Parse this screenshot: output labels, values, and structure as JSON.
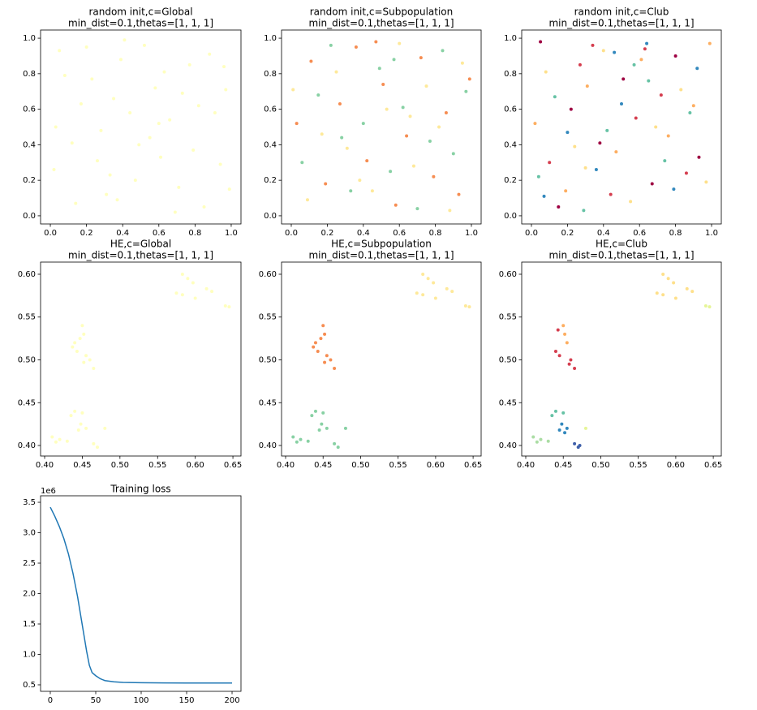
{
  "chart_data": [
    {
      "type": "scatter",
      "title": [
        "random init,c=Global",
        "min_dist=0.1,thetas=[1, 1, 1]"
      ],
      "xlim": [
        -0.054,
        1.054
      ],
      "ylim": [
        -0.046,
        1.046
      ],
      "xticks": [
        {
          "value": 0,
          "label": "0.0"
        },
        0.2,
        0.4,
        0.6,
        0.8,
        {
          "value": 1,
          "label": "1.0"
        }
      ],
      "yticks": [
        {
          "value": 0,
          "label": "0.0"
        },
        0.2,
        0.4,
        0.6,
        0.8,
        {
          "value": 1,
          "label": "1.0"
        }
      ],
      "series": [
        {
          "color": "#ffffbf",
          "x": [
            0.05,
            0.12,
            0.23,
            0.31,
            0.44,
            0.52,
            0.61,
            0.73,
            0.85,
            0.96,
            0.02,
            0.17,
            0.28,
            0.39,
            0.47,
            0.58,
            0.66,
            0.79,
            0.88,
            0.99,
            0.08,
            0.14,
            0.26,
            0.35,
            0.41,
            0.55,
            0.69,
            0.77,
            0.91,
            0.94,
            0.03,
            0.2,
            0.33,
            0.49,
            0.63,
            0.71,
            0.82,
            0.97,
            0.37,
            0.6
          ],
          "y": [
            0.93,
            0.41,
            0.77,
            0.12,
            0.58,
            0.96,
            0.33,
            0.69,
            0.05,
            0.84,
            0.26,
            0.63,
            0.48,
            0.88,
            0.2,
            0.72,
            0.54,
            0.37,
            0.91,
            0.15,
            0.79,
            0.07,
            0.31,
            0.66,
            0.99,
            0.44,
            0.02,
            0.85,
            0.58,
            0.29,
            0.5,
            0.95,
            0.23,
            0.4,
            0.81,
            0.16,
            0.62,
            0.71,
            0.09,
            0.52
          ]
        }
      ]
    },
    {
      "type": "scatter",
      "title": [
        "random init,c=Subpopulation",
        "min_dist=0.1,thetas=[1, 1, 1]"
      ],
      "xlim": [
        -0.054,
        1.054
      ],
      "ylim": [
        -0.046,
        1.046
      ],
      "xticks": [
        {
          "value": 0,
          "label": "0.0"
        },
        0.2,
        0.4,
        0.6,
        0.8,
        {
          "value": 1,
          "label": "1.0"
        }
      ],
      "yticks": [
        {
          "value": 0,
          "label": "0.0"
        },
        0.2,
        0.4,
        0.6,
        0.8,
        {
          "value": 1,
          "label": "1.0"
        }
      ],
      "series": [
        {
          "color": "#f68d52",
          "x": [
            0.03,
            0.11,
            0.19,
            0.27,
            0.36,
            0.42,
            0.51,
            0.58,
            0.64,
            0.72,
            0.79,
            0.86,
            0.93,
            0.99,
            0.47
          ],
          "y": [
            0.52,
            0.87,
            0.18,
            0.63,
            0.95,
            0.31,
            0.74,
            0.06,
            0.45,
            0.89,
            0.22,
            0.58,
            0.12,
            0.77,
            0.98
          ]
        },
        {
          "color": "#88d1a4",
          "x": [
            0.06,
            0.15,
            0.22,
            0.33,
            0.4,
            0.49,
            0.55,
            0.62,
            0.7,
            0.77,
            0.84,
            0.9,
            0.97,
            0.28,
            0.57
          ],
          "y": [
            0.3,
            0.68,
            0.96,
            0.14,
            0.52,
            0.83,
            0.25,
            0.61,
            0.04,
            0.42,
            0.93,
            0.35,
            0.7,
            0.44,
            0.88
          ]
        },
        {
          "color": "#fee99a",
          "x": [
            0.09,
            0.17,
            0.25,
            0.31,
            0.45,
            0.53,
            0.6,
            0.68,
            0.75,
            0.82,
            0.88,
            0.95,
            0.01,
            0.38,
            0.66
          ],
          "y": [
            0.09,
            0.46,
            0.81,
            0.38,
            0.14,
            0.6,
            0.97,
            0.28,
            0.73,
            0.5,
            0.03,
            0.86,
            0.71,
            0.2,
            0.56
          ]
        }
      ]
    },
    {
      "type": "scatter",
      "title": [
        "random init,c=Club",
        "min_dist=0.1,thetas=[1, 1, 1]"
      ],
      "xlim": [
        -0.054,
        1.054
      ],
      "ylim": [
        -0.046,
        1.046
      ],
      "xticks": [
        {
          "value": 0,
          "label": "0.0"
        },
        0.2,
        0.4,
        0.6,
        0.8,
        {
          "value": 1,
          "label": "1.0"
        }
      ],
      "yticks": [
        {
          "value": 0,
          "label": "0.0"
        },
        0.2,
        0.4,
        0.6,
        0.8,
        {
          "value": 1,
          "label": "1.0"
        }
      ],
      "series": [
        {
          "color": "#9e0142",
          "x": [
            0.05,
            0.22,
            0.38,
            0.51,
            0.67,
            0.8,
            0.93,
            0.15
          ],
          "y": [
            0.98,
            0.6,
            0.41,
            0.77,
            0.18,
            0.9,
            0.33,
            0.05
          ]
        },
        {
          "color": "#d53e4f",
          "x": [
            0.1,
            0.27,
            0.44,
            0.58,
            0.72,
            0.86,
            0.34,
            0.63
          ],
          "y": [
            0.3,
            0.85,
            0.12,
            0.55,
            0.68,
            0.24,
            0.96,
            0.94
          ]
        },
        {
          "color": "#fdae61",
          "x": [
            0.02,
            0.19,
            0.31,
            0.47,
            0.61,
            0.76,
            0.9,
            0.99
          ],
          "y": [
            0.52,
            0.14,
            0.73,
            0.36,
            0.88,
            0.45,
            0.62,
            0.97
          ]
        },
        {
          "color": "#fee08b",
          "x": [
            0.08,
            0.24,
            0.4,
            0.55,
            0.69,
            0.83,
            0.97,
            0.3
          ],
          "y": [
            0.81,
            0.39,
            0.93,
            0.08,
            0.5,
            0.71,
            0.19,
            0.27
          ]
        },
        {
          "color": "#66c2a5",
          "x": [
            0.13,
            0.29,
            0.42,
            0.57,
            0.74,
            0.88,
            0.04,
            0.65
          ],
          "y": [
            0.67,
            0.03,
            0.48,
            0.85,
            0.31,
            0.58,
            0.22,
            0.76
          ]
        },
        {
          "color": "#3288bd",
          "x": [
            0.07,
            0.2,
            0.36,
            0.5,
            0.64,
            0.79,
            0.92,
            0.46
          ],
          "y": [
            0.11,
            0.47,
            0.26,
            0.63,
            0.97,
            0.15,
            0.83,
            0.92
          ]
        }
      ]
    },
    {
      "type": "scatter",
      "title": [
        "HE,c=Global",
        "min_dist=0.1,thetas=[1, 1, 1]"
      ],
      "xlim": [
        0.3946,
        0.6607
      ],
      "ylim": [
        0.3877,
        0.6142
      ],
      "xticks": [
        {
          "value": 0.4,
          "label": "0.40"
        },
        0.45,
        {
          "value": 0.5,
          "label": "0.50"
        },
        0.55,
        {
          "value": 0.6,
          "label": "0.60"
        },
        0.65
      ],
      "yticks": [
        {
          "value": 0.4,
          "label": "0.40"
        },
        0.45,
        {
          "value": 0.5,
          "label": "0.50"
        },
        0.55,
        {
          "value": 0.6,
          "label": "0.60"
        }
      ],
      "series": [
        {
          "color": "#ffffbf",
          "x": [
            0.45,
            0.452,
            0.447,
            0.44,
            0.437,
            0.443,
            0.455,
            0.46,
            0.452,
            0.465,
            0.44,
            0.435,
            0.45,
            0.448,
            0.455,
            0.445,
            0.41,
            0.42,
            0.43,
            0.415,
            0.465,
            0.47,
            0.48,
            0.583,
            0.59,
            0.597,
            0.575,
            0.583,
            0.615,
            0.622,
            0.6,
            0.64,
            0.645
          ],
          "y": [
            0.54,
            0.53,
            0.525,
            0.52,
            0.515,
            0.51,
            0.505,
            0.5,
            0.497,
            0.49,
            0.44,
            0.435,
            0.438,
            0.425,
            0.42,
            0.418,
            0.41,
            0.407,
            0.405,
            0.404,
            0.402,
            0.398,
            0.42,
            0.6,
            0.595,
            0.59,
            0.578,
            0.576,
            0.583,
            0.58,
            0.572,
            0.563,
            0.562
          ]
        }
      ]
    },
    {
      "type": "scatter",
      "title": [
        "HE,c=Subpopulation",
        "min_dist=0.1,thetas=[1, 1, 1]"
      ],
      "xlim": [
        0.3946,
        0.6607
      ],
      "ylim": [
        0.3877,
        0.6142
      ],
      "xticks": [
        {
          "value": 0.4,
          "label": "0.40"
        },
        0.45,
        {
          "value": 0.5,
          "label": "0.50"
        },
        0.55,
        {
          "value": 0.6,
          "label": "0.60"
        },
        0.65
      ],
      "yticks": [
        {
          "value": 0.4,
          "label": "0.40"
        },
        0.45,
        {
          "value": 0.5,
          "label": "0.50"
        },
        0.55,
        {
          "value": 0.6,
          "label": "0.60"
        }
      ],
      "series": [
        {
          "color": "#f68d52",
          "x": [
            0.45,
            0.452,
            0.447,
            0.44,
            0.437,
            0.443,
            0.455,
            0.46,
            0.452,
            0.465
          ],
          "y": [
            0.54,
            0.53,
            0.525,
            0.52,
            0.515,
            0.51,
            0.505,
            0.5,
            0.497,
            0.49
          ]
        },
        {
          "color": "#88d1a4",
          "x": [
            0.44,
            0.435,
            0.45,
            0.448,
            0.455,
            0.445,
            0.41,
            0.42,
            0.43,
            0.415,
            0.465,
            0.47,
            0.48
          ],
          "y": [
            0.44,
            0.435,
            0.438,
            0.425,
            0.42,
            0.418,
            0.41,
            0.407,
            0.405,
            0.404,
            0.402,
            0.398,
            0.42
          ]
        },
        {
          "color": "#fee99a",
          "x": [
            0.583,
            0.59,
            0.597,
            0.575,
            0.583,
            0.615,
            0.622,
            0.6,
            0.64,
            0.645
          ],
          "y": [
            0.6,
            0.595,
            0.59,
            0.578,
            0.576,
            0.583,
            0.58,
            0.572,
            0.563,
            0.562
          ]
        }
      ]
    },
    {
      "type": "scatter",
      "title": [
        "HE,c=Club",
        "min_dist=0.1,thetas=[1, 1, 1]"
      ],
      "xlim": [
        0.3946,
        0.6607
      ],
      "ylim": [
        0.3877,
        0.6142
      ],
      "xticks": [
        {
          "value": 0.4,
          "label": "0.40"
        },
        0.45,
        {
          "value": 0.5,
          "label": "0.50"
        },
        0.55,
        {
          "value": 0.6,
          "label": "0.60"
        },
        0.65
      ],
      "yticks": [
        {
          "value": 0.4,
          "label": "0.40"
        },
        0.45,
        {
          "value": 0.5,
          "label": "0.50"
        },
        0.55,
        {
          "value": 0.6,
          "label": "0.60"
        }
      ],
      "series": [
        {
          "color": "#fdae61",
          "x": [
            0.45,
            0.452,
            0.455
          ],
          "y": [
            0.54,
            0.53,
            0.52
          ]
        },
        {
          "color": "#d53e4f",
          "x": [
            0.443,
            0.44,
            0.445,
            0.46,
            0.458,
            0.465
          ],
          "y": [
            0.535,
            0.51,
            0.505,
            0.5,
            0.495,
            0.49
          ]
        },
        {
          "color": "#66c2a5",
          "x": [
            0.44,
            0.435,
            0.45
          ],
          "y": [
            0.44,
            0.435,
            0.438
          ]
        },
        {
          "color": "#3288bd",
          "x": [
            0.448,
            0.455,
            0.445,
            0.452
          ],
          "y": [
            0.425,
            0.42,
            0.418,
            0.415
          ]
        },
        {
          "color": "#abdda4",
          "x": [
            0.41,
            0.42,
            0.43,
            0.415
          ],
          "y": [
            0.41,
            0.407,
            0.405,
            0.404
          ]
        },
        {
          "color": "#3f60aa",
          "x": [
            0.465,
            0.47,
            0.472
          ],
          "y": [
            0.402,
            0.398,
            0.4
          ]
        },
        {
          "color": "#e6f598",
          "x": [
            0.48,
            0.64,
            0.645
          ],
          "y": [
            0.42,
            0.563,
            0.562
          ]
        },
        {
          "color": "#fee08b",
          "x": [
            0.583,
            0.59,
            0.597,
            0.575,
            0.583,
            0.615,
            0.622,
            0.6
          ],
          "y": [
            0.6,
            0.595,
            0.59,
            0.578,
            0.576,
            0.583,
            0.58,
            0.572
          ]
        }
      ]
    },
    {
      "type": "line",
      "title": [
        "Training loss"
      ],
      "offset_label": "1e6",
      "xlim": [
        -10.7,
        209.8
      ],
      "ylim": [
        0.393,
        3.607
      ],
      "xticks": [
        0,
        50,
        100,
        150,
        200
      ],
      "yticks": [
        0.5,
        {
          "value": 1,
          "label": "1.0"
        },
        1.5,
        {
          "value": 2,
          "label": "2.0"
        },
        2.5,
        {
          "value": 3,
          "label": "3.0"
        },
        3.5
      ],
      "series": [
        {
          "color": "#1f77b4",
          "x": [
            0,
            5,
            10,
            15,
            20,
            25,
            30,
            35,
            40,
            43,
            46,
            50,
            55,
            60,
            70,
            80,
            100,
            125,
            150,
            175,
            200
          ],
          "values": [
            3.42,
            3.27,
            3.1,
            2.9,
            2.65,
            2.33,
            1.95,
            1.5,
            1.05,
            0.82,
            0.7,
            0.65,
            0.6,
            0.57,
            0.55,
            0.54,
            0.535,
            0.532,
            0.53,
            0.53,
            0.53
          ]
        }
      ]
    }
  ]
}
